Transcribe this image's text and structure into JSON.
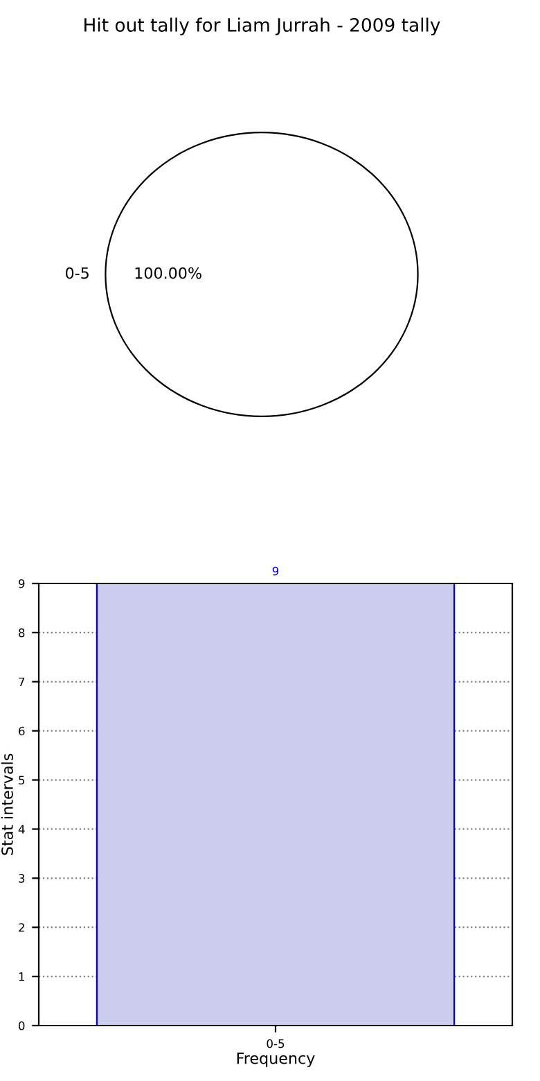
{
  "chart_data": [
    {
      "type": "pie",
      "title": "Hit out tally for Liam Jurrah - 2009 tally",
      "categories": [
        "0-5"
      ],
      "values": [
        100
      ],
      "colors": [
        "#ffffff"
      ],
      "value_labels": [
        "100.00%"
      ]
    },
    {
      "type": "bar",
      "categories": [
        "0-5"
      ],
      "values": [
        9
      ],
      "color": "#ccccee",
      "xlabel": "Frequency",
      "ylabel": "Stat intervals",
      "ylim": [
        0,
        9
      ],
      "yticks": [
        0,
        1,
        2,
        3,
        4,
        5,
        6,
        7,
        8,
        9
      ],
      "grid": true,
      "data_labels": true
    }
  ]
}
